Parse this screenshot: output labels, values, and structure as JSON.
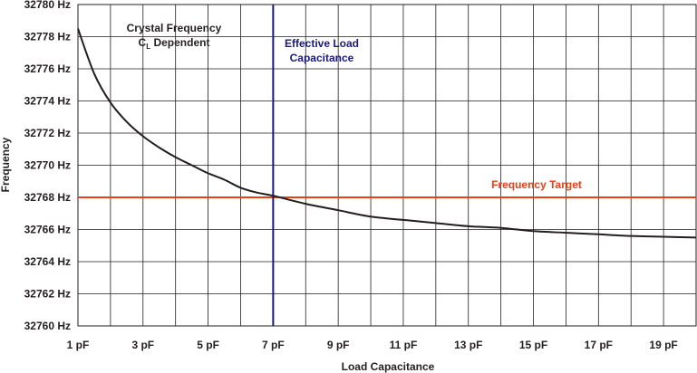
{
  "chart_data": {
    "type": "line",
    "title": "",
    "xlabel": "Load Capacitance",
    "ylabel": "Frequency",
    "xlim": [
      1,
      20
    ],
    "ylim": [
      32760,
      32780
    ],
    "x_ticks": [
      1,
      3,
      5,
      7,
      9,
      11,
      13,
      15,
      17,
      19
    ],
    "x_tick_labels": [
      "1 pF",
      "3 pF",
      "5 pF",
      "7 pF",
      "9 pF",
      "11 pF",
      "13 pF",
      "15 pF",
      "17 pF",
      "19 pF"
    ],
    "y_ticks": [
      32760,
      32762,
      32764,
      32766,
      32768,
      32770,
      32772,
      32774,
      32776,
      32778,
      32780
    ],
    "y_tick_labels": [
      "32760 Hz",
      "32762 Hz",
      "32764 Hz",
      "32766 Hz",
      "32768 Hz",
      "32770 Hz",
      "32772 Hz",
      "32774 Hz",
      "32776 Hz",
      "32778 Hz",
      "32780 Hz"
    ],
    "grid": true,
    "series": [
      {
        "name": "Crystal Frequency CL Dependent",
        "color": "#231f20",
        "x": [
          1,
          1.5,
          2,
          2.5,
          3,
          3.5,
          4,
          4.5,
          5,
          5.5,
          6,
          6.5,
          7,
          8,
          9,
          10,
          11,
          12,
          13,
          14,
          15,
          16,
          17,
          18,
          19,
          20
        ],
        "y": [
          32778.5,
          32775.7,
          32773.9,
          32772.7,
          32771.8,
          32771.1,
          32770.5,
          32770.0,
          32769.5,
          32769.1,
          32768.6,
          32768.3,
          32768.1,
          32767.6,
          32767.2,
          32766.8,
          32766.6,
          32766.4,
          32766.2,
          32766.1,
          32765.9,
          32765.8,
          32765.7,
          32765.6,
          32765.55,
          32765.5
        ]
      }
    ],
    "reference_lines": {
      "vertical": {
        "x": 7,
        "color": "#1a1a7a",
        "label": "Effective Load Capacitance"
      },
      "horizontal": {
        "y": 32768,
        "color": "#e8401c",
        "label": "Frequency Target"
      }
    },
    "annotations": {
      "curve_label_line1": "Crystal Frequency",
      "curve_label_main": "C",
      "curve_label_sub": "L",
      "curve_label_rest": " Dependent",
      "vline_label_line1": "Effective Load",
      "vline_label_line2": "Capacitance",
      "hline_label": "Frequency Target"
    }
  }
}
